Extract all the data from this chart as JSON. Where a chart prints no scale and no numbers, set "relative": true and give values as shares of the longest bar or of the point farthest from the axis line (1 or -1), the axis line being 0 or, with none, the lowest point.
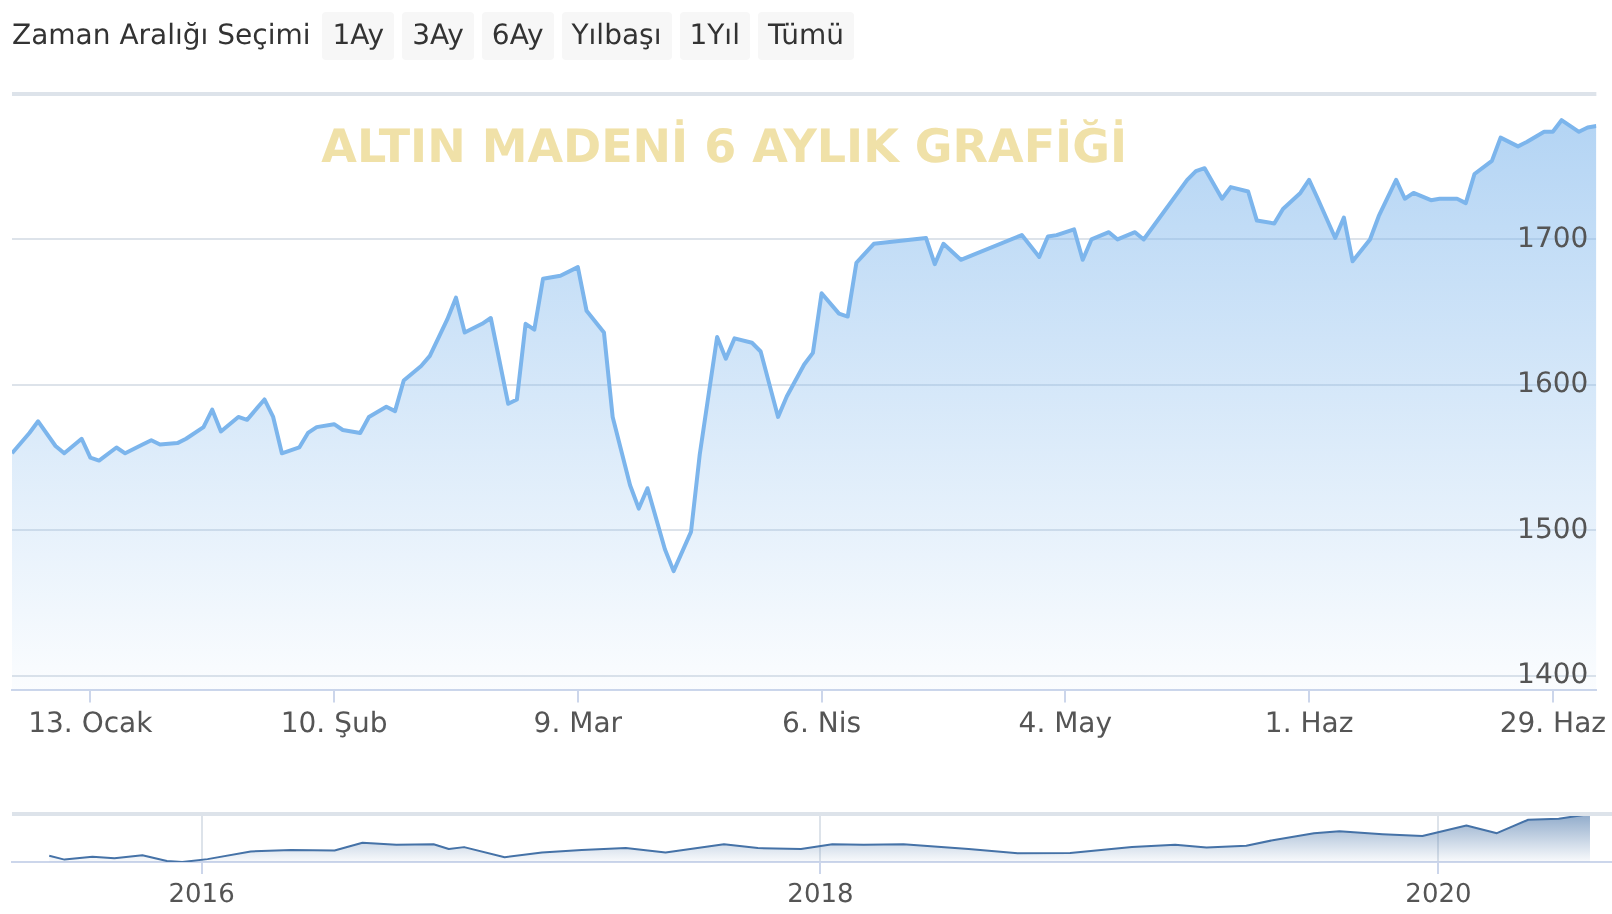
{
  "chart_data": [
    {
      "type": "area",
      "title": "ALTIN MADENİ 6 AYLIK GRAFİĞİ",
      "annotations": [
        "Zaman Aralığı Seçimi",
        "1Ay",
        "3Ay",
        "6Ay",
        "Yılbaşı",
        "1Yıl",
        "Tümü"
      ],
      "color": "#7cb5ec",
      "grid": "y",
      "x": [
        "2020-01-04",
        "2020-01-06",
        "2020-01-07",
        "2020-01-09",
        "2020-01-10",
        "2020-01-12",
        "2020-01-13",
        "2020-01-14",
        "2020-01-16",
        "2020-01-17",
        "2020-01-19",
        "2020-01-20",
        "2020-01-21",
        "2020-01-23",
        "2020-01-24",
        "2020-01-26",
        "2020-01-27",
        "2020-01-28",
        "2020-01-30",
        "2020-01-31",
        "2020-02-02",
        "2020-02-03",
        "2020-02-04",
        "2020-02-06",
        "2020-02-07",
        "2020-02-08",
        "2020-02-10",
        "2020-02-11",
        "2020-02-13",
        "2020-02-14",
        "2020-02-16",
        "2020-02-17",
        "2020-02-18",
        "2020-02-20",
        "2020-02-21",
        "2020-02-23",
        "2020-02-24",
        "2020-02-25",
        "2020-02-27",
        "2020-02-28",
        "2020-03-01",
        "2020-03-02",
        "2020-03-03",
        "2020-03-04",
        "2020-03-05",
        "2020-03-07",
        "2020-03-09",
        "2020-03-10",
        "2020-03-12",
        "2020-03-13",
        "2020-03-15",
        "2020-03-16",
        "2020-03-17",
        "2020-03-19",
        "2020-03-20",
        "2020-03-22",
        "2020-03-23",
        "2020-03-25",
        "2020-03-26",
        "2020-03-27",
        "2020-03-29",
        "2020-03-30",
        "2020-04-01",
        "2020-04-02",
        "2020-04-04",
        "2020-04-05",
        "2020-04-06",
        "2020-04-08",
        "2020-04-09",
        "2020-04-10",
        "2020-04-12",
        "2020-04-13",
        "2020-04-14",
        "2020-04-15",
        "2020-04-16",
        "2020-04-18",
        "2020-04-19",
        "2020-04-20",
        "2020-04-22",
        "2020-04-23",
        "2020-04-24",
        "2020-04-26",
        "2020-04-27",
        "2020-04-28",
        "2020-04-29",
        "2020-05-01",
        "2020-05-02",
        "2020-05-03",
        "2020-05-05",
        "2020-05-06",
        "2020-05-07",
        "2020-05-09",
        "2020-05-10",
        "2020-05-12",
        "2020-05-13",
        "2020-05-14",
        "2020-05-15",
        "2020-05-16",
        "2020-05-17",
        "2020-05-18",
        "2020-05-19",
        "2020-05-20",
        "2020-05-22",
        "2020-05-23",
        "2020-05-25",
        "2020-05-26",
        "2020-05-28",
        "2020-05-29",
        "2020-05-31",
        "2020-06-01",
        "2020-06-02",
        "2020-06-04",
        "2020-06-05",
        "2020-06-06",
        "2020-06-08",
        "2020-06-09",
        "2020-06-11",
        "2020-06-12",
        "2020-06-13",
        "2020-06-15",
        "2020-06-16",
        "2020-06-18",
        "2020-06-19",
        "2020-06-20",
        "2020-06-22",
        "2020-06-23",
        "2020-06-25",
        "2020-06-26",
        "2020-06-28",
        "2020-06-29",
        "2020-06-30",
        "2020-07-02",
        "2020-07-03",
        "2020-07-04"
      ],
      "values": [
        1553,
        1567,
        1575,
        1558,
        1553,
        1563,
        1550,
        1548,
        1557,
        1553,
        1559,
        1562,
        1559,
        1560,
        1563,
        1571,
        1583,
        1568,
        1578,
        1576,
        1590,
        1578,
        1553,
        1557,
        1567,
        1571,
        1573,
        1569,
        1567,
        1578,
        1585,
        1582,
        1603,
        1613,
        1620,
        1645,
        1660,
        1636,
        1642,
        1646,
        1587,
        1590,
        1642,
        1638,
        1673,
        1675,
        1681,
        1651,
        1636,
        1578,
        1531,
        1515,
        1529,
        1487,
        1472,
        1499,
        1552,
        1633,
        1618,
        1632,
        1629,
        1623,
        1578,
        1592,
        1614,
        1622,
        1663,
        1649,
        1647,
        1684,
        1697,
        null,
        null,
        null,
        null,
        1701,
        1683,
        1697,
        1686,
        null,
        null,
        null,
        null,
        null,
        1703,
        1688,
        1702,
        1703,
        1707,
        1686,
        1700,
        1705,
        1700,
        1705,
        1700,
        null,
        null,
        null,
        null,
        1741,
        1747,
        1749,
        1728,
        1736,
        1733,
        1713,
        1711,
        1721,
        1732,
        1741,
        1728,
        1701,
        1715,
        1685,
        1700,
        1716,
        1741,
        1728,
        1732,
        1727,
        1728,
        1728,
        1725,
        1745,
        1754,
        1770,
        1764,
        1767,
        1774,
        1774,
        1782,
        1774,
        1777,
        1778
      ],
      "xlim": [
        "2020-01-04",
        "2020-07-04"
      ],
      "xticks": [
        {
          "value": "2020-01-13",
          "label": "13. Ocak"
        },
        {
          "value": "2020-02-10",
          "label": "10. Şub"
        },
        {
          "value": "2020-03-09",
          "label": "9. Mar"
        },
        {
          "value": "2020-04-06",
          "label": "6. Nis"
        },
        {
          "value": "2020-05-04",
          "label": "4. May"
        },
        {
          "value": "2020-06-01",
          "label": "1. Haz"
        },
        {
          "value": "2020-06-29",
          "label": "29. Haz"
        }
      ],
      "ylim": [
        1390,
        1800
      ],
      "yticks": [
        1400,
        1500,
        1600,
        1700
      ]
    },
    {
      "type": "area",
      "relative": true,
      "color": "#4572a7",
      "grid": "x",
      "x": [
        "2015-07-05",
        "2015-07-23",
        "2015-08-25",
        "2015-09-20",
        "2015-10-23",
        "2015-11-21",
        "2015-12-09",
        "2016-01-08",
        "2016-02-28",
        "2016-04-16",
        "2016-06-06",
        "2016-07-09",
        "2016-08-18",
        "2016-10-01",
        "2016-10-19",
        "2016-11-06",
        "2016-12-24",
        "2017-02-06",
        "2017-03-25",
        "2017-05-16",
        "2017-07-02",
        "2017-09-09",
        "2017-10-19",
        "2017-12-09",
        "2018-01-15",
        "2018-02-21",
        "2018-04-09",
        "2018-06-25",
        "2018-08-22",
        "2018-10-23",
        "2019-01-04",
        "2019-02-24",
        "2019-04-02",
        "2019-05-19",
        "2019-06-21",
        "2019-08-07",
        "2019-09-06",
        "2019-10-27",
        "2019-12-13",
        "2020-02-03",
        "2020-03-10",
        "2020-04-16",
        "2020-05-22",
        "2020-06-28"
      ],
      "values": [
        0.13,
        0.05,
        0.11,
        0.08,
        0.14,
        0.02,
        0,
        0.06,
        0.22,
        0.25,
        0.24,
        0.4,
        0.36,
        0.37,
        0.27,
        0.31,
        0.1,
        0.2,
        0.25,
        0.29,
        0.2,
        0.37,
        0.29,
        0.27,
        0.37,
        0.36,
        0.37,
        0.27,
        0.18,
        0.19,
        0.31,
        0.36,
        0.3,
        0.34,
        0.46,
        0.6,
        0.64,
        0.58,
        0.54,
        0.76,
        0.6,
        0.88,
        0.9,
        1
      ],
      "xlim": [
        "2015-05-22",
        "2020-07-24"
      ],
      "xticks": [
        "2016",
        "2018",
        "2020"
      ]
    }
  ]
}
